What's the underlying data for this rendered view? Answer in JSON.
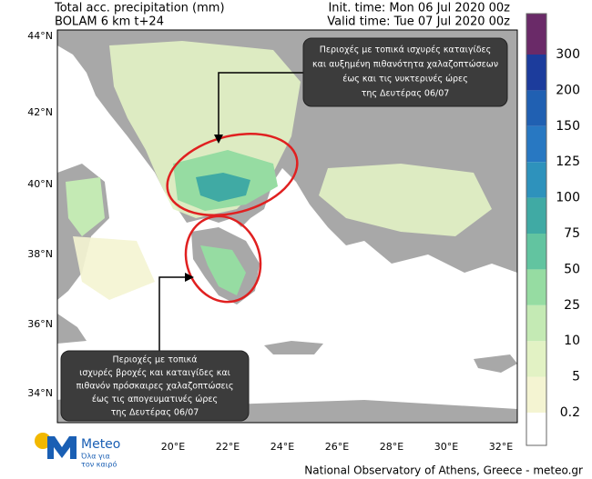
{
  "header": {
    "title": "Total acc. precipitation (mm)",
    "model": "BOLAM 6 km t+24",
    "init_time": "Init. time: Mon 06 Jul 2020 00z",
    "valid_time": "Valid time: Tue 07 Jul 2020 00z"
  },
  "map": {
    "lat_labels": [
      "44°N",
      "42°N",
      "40°N",
      "38°N",
      "36°N",
      "34°N"
    ],
    "lon_labels": [
      "20°E",
      "22°E",
      "24°E",
      "26°E",
      "28°E",
      "30°E",
      "32°E"
    ]
  },
  "colorbar": {
    "levels": [
      0.2,
      5,
      10,
      25,
      50,
      75,
      100,
      125,
      150,
      200,
      300
    ],
    "colors": [
      "#ffffff",
      "#f4f4d2",
      "#e2f2c4",
      "#c4eab4",
      "#96dca2",
      "#62c4a0",
      "#40aaa4",
      "#2e92bc",
      "#2878c2",
      "#2060b2",
      "#1c3c9c",
      "#6a2a68"
    ]
  },
  "annotations": [
    {
      "lines": [
        "Περιοχές με τοπικά ισχυρές καταιγίδες",
        "και αυξημένη πιθανότητα χαλαζοπτώσεων",
        "έως και τις νυκτερινές ώρες",
        "της Δευτέρας 06/07"
      ]
    },
    {
      "lines": [
        "Περιοχές με τοπικά",
        "ισχυρές βροχές και καταιγίδες και",
        "πιθανόν πρόσκαιρες χαλαζοπτώσεις",
        "έως τις απογευματινές ώρες",
        "της Δευτέρας 06/07"
      ]
    }
  ],
  "logo": {
    "name": "Meteo",
    "tagline": [
      "Όλα για",
      "τον καιρό"
    ]
  },
  "footer": "National Observatory of Athens, Greece - meteo.gr"
}
